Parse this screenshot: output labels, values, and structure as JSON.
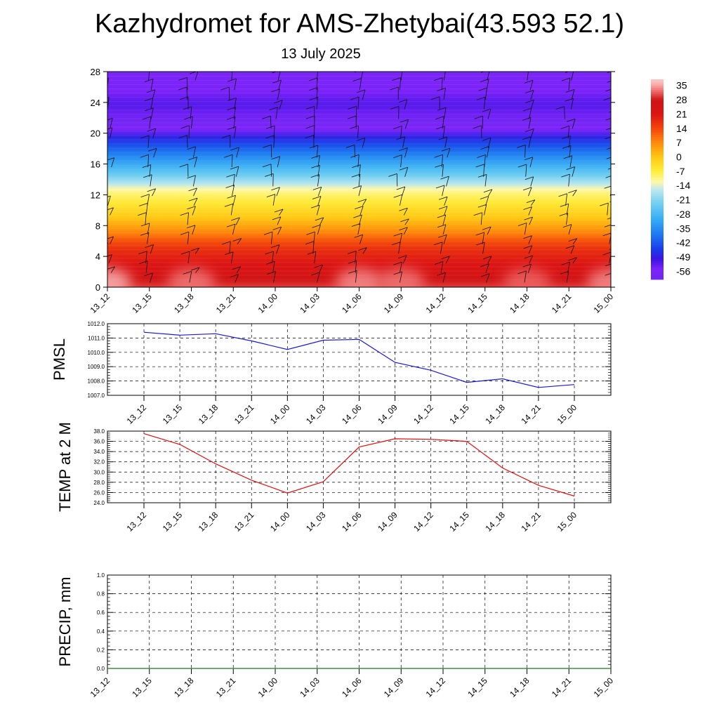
{
  "header": {
    "title": "Kazhydromet for AMS-Zhetybai(43.593 52.1)",
    "subtitle": "13 July 2025"
  },
  "chart_data": [
    {
      "id": "cross-section",
      "type": "heatmap",
      "xlabel": "",
      "ylabel": "",
      "categories": [
        "13_12",
        "13_15",
        "13_18",
        "13_21",
        "14_00",
        "14_03",
        "14_06",
        "14_09",
        "14_12",
        "14_15",
        "14_18",
        "14_21",
        "15_00"
      ],
      "y_ticks": [
        0,
        4,
        8,
        12,
        16,
        20,
        24,
        28
      ],
      "ylim": [
        0,
        28
      ],
      "vertical_profile": {
        "levels": [
          0,
          1,
          2,
          3,
          4,
          5,
          6,
          7,
          8,
          9,
          10,
          11,
          12,
          12.7,
          13.5,
          14.5,
          15.5,
          16.5,
          17.5,
          18.5,
          19.5,
          20.5,
          21.5,
          22.5,
          23.5,
          24.5,
          25.5,
          28
        ],
        "temperature": [
          30,
          26,
          23,
          21,
          19,
          17,
          13,
          8,
          4,
          0,
          -3,
          -6,
          -9,
          -12,
          -17,
          -23,
          -28,
          -33,
          -38,
          -43,
          -48,
          -55,
          -58,
          -54,
          -52,
          -53,
          -55,
          -56
        ]
      },
      "surface_warm_cells": [
        {
          "time": "13_12",
          "temperature": 36
        },
        {
          "time": "13_18",
          "temperature": 33
        },
        {
          "time": "14_06",
          "temperature": 34
        },
        {
          "time": "14_09",
          "temperature": 33
        },
        {
          "time": "14_18",
          "temperature": 32
        },
        {
          "time": "15_00",
          "temperature": 34
        }
      ],
      "wind_barbs": "present at every time step and height level",
      "colorbar": {
        "labels": [
          "35",
          "28",
          "21",
          "14",
          "7",
          "0",
          "-7",
          "-14",
          "-21",
          "-28",
          "-35",
          "-42",
          "-49",
          "-56"
        ],
        "range": [
          -60,
          38
        ]
      }
    },
    {
      "id": "pmsl",
      "type": "line",
      "ylabel": "PMSL",
      "categories": [
        "13_12",
        "13_15",
        "13_18",
        "13_21",
        "14_00",
        "14_03",
        "14_06",
        "14_09",
        "14_12",
        "14_15",
        "14_18",
        "14_21",
        "15_00"
      ],
      "y_ticks": [
        "1007.0",
        "1008.0",
        "1009.0",
        "1010.0",
        "1011.0",
        "1012.0"
      ],
      "ylim": [
        1007,
        1012
      ],
      "grid": true,
      "series": [
        {
          "color": "#1a1ad6",
          "values": [
            1011.4,
            1011.2,
            1011.3,
            1010.8,
            1010.2,
            1010.85,
            1010.9,
            1009.3,
            1008.75,
            1007.9,
            1008.15,
            1007.55,
            1007.75
          ]
        }
      ]
    },
    {
      "id": "temp2m",
      "type": "line",
      "ylabel": "TEMP at 2 M",
      "categories": [
        "13_12",
        "13_15",
        "13_18",
        "13_21",
        "14_00",
        "14_03",
        "14_06",
        "14_09",
        "14_12",
        "14_15",
        "14_18",
        "14_21",
        "15_00"
      ],
      "y_ticks": [
        "24.0",
        "26.0",
        "28.0",
        "30.0",
        "32.0",
        "34.0",
        "36.0",
        "38.0"
      ],
      "ylim": [
        24,
        38
      ],
      "grid": true,
      "series": [
        {
          "color": "#e01010",
          "values": [
            37.5,
            35.4,
            31.6,
            28.4,
            25.9,
            28.1,
            34.9,
            36.5,
            36.4,
            36.0,
            30.8,
            27.4,
            25.3
          ]
        }
      ]
    },
    {
      "id": "precip",
      "type": "line",
      "ylabel": "PRECIP, mm",
      "categories": [
        "13_12",
        "13_15",
        "13_18",
        "13_21",
        "14_00",
        "14_03",
        "14_06",
        "14_09",
        "14_12",
        "14_15",
        "14_18",
        "14_21",
        "15_00"
      ],
      "y_ticks": [
        "0.0",
        "0.2",
        "0.4",
        "0.6",
        "0.8",
        "1.0"
      ],
      "ylim": [
        0,
        1
      ],
      "grid": true,
      "series": [
        {
          "color": "#1a7a1a",
          "values": [
            0,
            0,
            0,
            0,
            0,
            0,
            0,
            0,
            0,
            0,
            0,
            0,
            0
          ]
        }
      ]
    }
  ]
}
